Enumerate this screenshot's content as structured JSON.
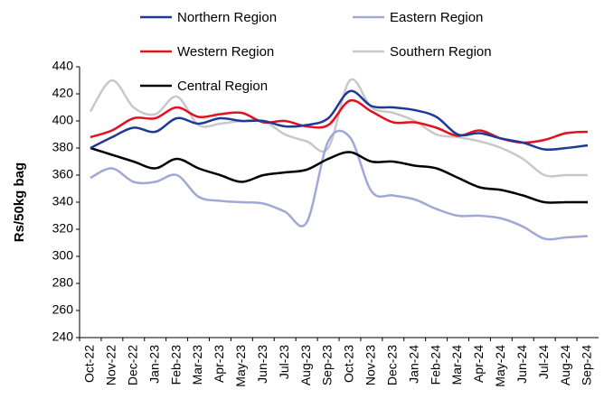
{
  "chart_data": {
    "type": "line",
    "ylabel": "Rs/50kg bag",
    "categories": [
      "Oct-22",
      "Nov-22",
      "Dec-22",
      "Jan-23",
      "Feb-23",
      "Mar-23",
      "Apr-23",
      "May-23",
      "Jun-23",
      "Jul-23",
      "Aug-23",
      "Sep-23",
      "Oct-23",
      "Nov-23",
      "Dec-23",
      "Jan-24",
      "Feb-24",
      "Mar-24",
      "Apr-24",
      "May-24",
      "Jun-24",
      "Jul-24",
      "Aug-24",
      "Sep-24"
    ],
    "series": [
      {
        "name": "Northern Region",
        "color": "#1f3a93",
        "values": [
          380,
          388,
          395,
          392,
          402,
          398,
          402,
          400,
          400,
          396,
          397,
          402,
          422,
          411,
          410,
          408,
          403,
          390,
          391,
          387,
          384,
          379,
          380,
          382
        ]
      },
      {
        "name": "Eastern Region",
        "color": "#a0a8d8",
        "values": [
          358,
          365,
          355,
          355,
          360,
          344,
          341,
          340,
          339,
          333,
          325,
          385,
          388,
          348,
          345,
          342,
          335,
          330,
          330,
          328,
          322,
          313,
          314,
          315
        ]
      },
      {
        "name": "Western Region",
        "color": "#e3101e",
        "values": [
          388,
          393,
          402,
          402,
          410,
          403,
          405,
          406,
          399,
          400,
          396,
          397,
          415,
          407,
          399,
          399,
          395,
          389,
          393,
          387,
          384,
          386,
          391,
          392
        ]
      },
      {
        "name": "Southern Region",
        "color": "#c8c8c8",
        "values": [
          407,
          430,
          410,
          405,
          418,
          397,
          398,
          400,
          400,
          390,
          385,
          380,
          430,
          410,
          406,
          400,
          390,
          388,
          385,
          380,
          372,
          360,
          360,
          360
        ]
      },
      {
        "name": "Central Region",
        "color": "#000000",
        "values": [
          380,
          375,
          370,
          365,
          372,
          365,
          360,
          355,
          360,
          362,
          364,
          372,
          377,
          370,
          370,
          367,
          365,
          358,
          351,
          349,
          345,
          340,
          340,
          340
        ]
      }
    ],
    "ylim": [
      240,
      440
    ],
    "yticks": [
      240,
      260,
      280,
      300,
      320,
      340,
      360,
      380,
      400,
      420,
      440
    ]
  }
}
